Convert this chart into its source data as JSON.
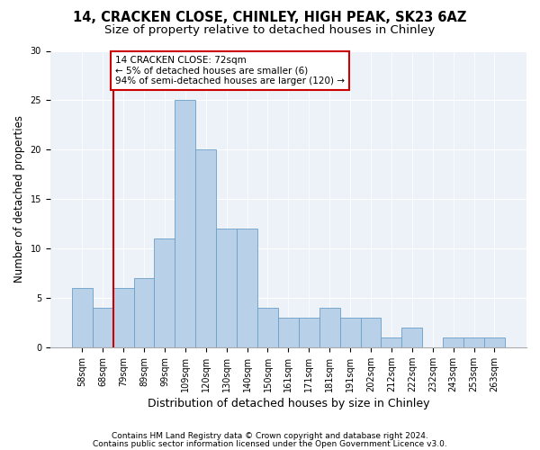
{
  "title1": "14, CRACKEN CLOSE, CHINLEY, HIGH PEAK, SK23 6AZ",
  "title2": "Size of property relative to detached houses in Chinley",
  "xlabel": "Distribution of detached houses by size in Chinley",
  "ylabel": "Number of detached properties",
  "categories": [
    "58sqm",
    "68sqm",
    "79sqm",
    "89sqm",
    "99sqm",
    "109sqm",
    "120sqm",
    "130sqm",
    "140sqm",
    "150sqm",
    "161sqm",
    "171sqm",
    "181sqm",
    "191sqm",
    "202sqm",
    "212sqm",
    "222sqm",
    "232sqm",
    "243sqm",
    "253sqm",
    "263sqm"
  ],
  "values": [
    6,
    4,
    6,
    7,
    11,
    25,
    20,
    12,
    12,
    4,
    3,
    3,
    4,
    3,
    3,
    1,
    2,
    0,
    1,
    1,
    1
  ],
  "bar_color": "#b8d0e8",
  "bar_edge_color": "#6a9fc8",
  "bar_linewidth": 0.6,
  "vline_x": 1.5,
  "vline_color": "#cc0000",
  "annotation_text": "14 CRACKEN CLOSE: 72sqm\n← 5% of detached houses are smaller (6)\n94% of semi-detached houses are larger (120) →",
  "annotation_box_color": "#ffffff",
  "annotation_box_edge_color": "#cc0000",
  "ylim": [
    0,
    30
  ],
  "yticks": [
    0,
    5,
    10,
    15,
    20,
    25,
    30
  ],
  "bg_color": "#edf2f9",
  "footer1": "Contains HM Land Registry data © Crown copyright and database right 2024.",
  "footer2": "Contains public sector information licensed under the Open Government Licence v3.0.",
  "title1_fontsize": 10.5,
  "title2_fontsize": 9.5,
  "xlabel_fontsize": 9,
  "ylabel_fontsize": 8.5,
  "tick_fontsize": 7,
  "footer_fontsize": 6.5,
  "annotation_fontsize": 7.5
}
